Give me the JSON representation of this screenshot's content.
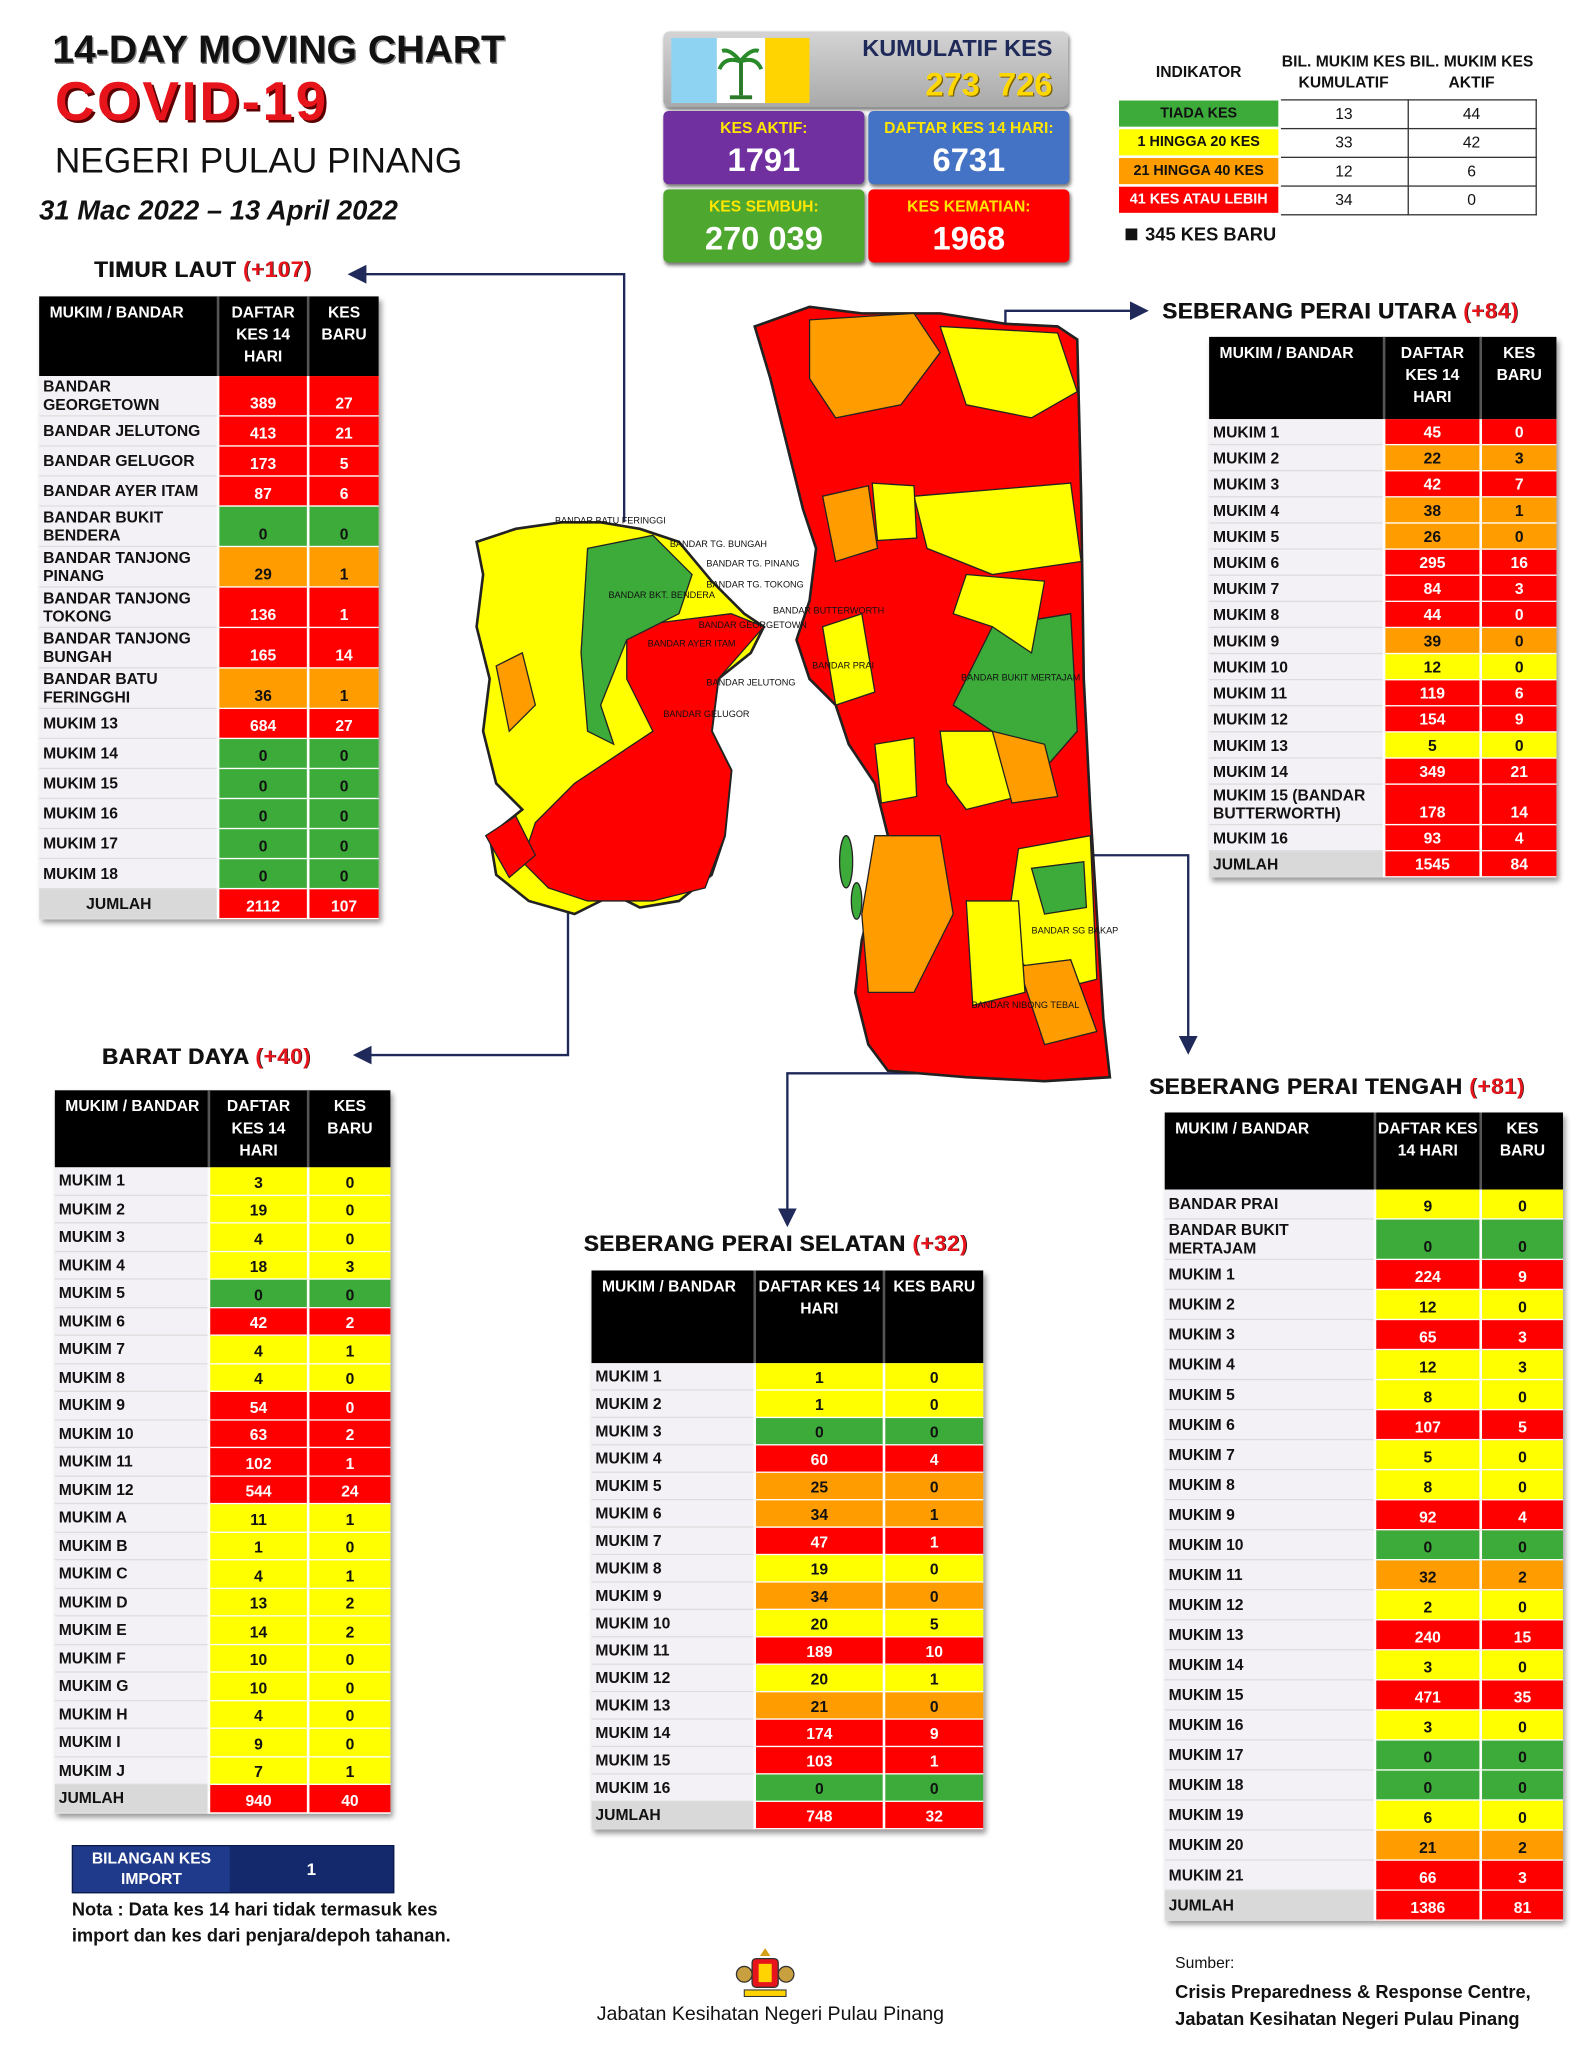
{
  "header": {
    "title": "14-DAY MOVING CHART",
    "subtitle": "COVID-19",
    "state": "NEGERI PULAU PINANG",
    "period": "31 Mac 2022 – 13 April 2022"
  },
  "summary": {
    "cumulative": {
      "label": "KUMULATIF KES",
      "value": 273726,
      "value_label": "273  726"
    },
    "tiles": [
      {
        "label": "KES AKTIF:",
        "value": 1791,
        "color": "#7030a0"
      },
      {
        "label": "DAFTAR KES 14 HARI:",
        "value": 6731,
        "color": "#4472c4"
      },
      {
        "label": "KES SEMBUH:",
        "value": 270039,
        "value_label": "270 039",
        "color": "#4ea72e"
      },
      {
        "label": "KES KEMATIAN:",
        "value": 1968,
        "color": "#ff0000"
      }
    ]
  },
  "indicator": {
    "headers": [
      "INDIKATOR",
      "BIL. MUKIM KES KUMULATIF",
      "BIL. MUKIM KES AKTIF"
    ],
    "rows": [
      {
        "label": "TIADA KES",
        "color": "#3cab3a",
        "cumulative": 13,
        "active": 44
      },
      {
        "label": "1 HINGGA 20 KES",
        "color": "#ffff00",
        "cumulative": 33,
        "active": 42
      },
      {
        "label": "21 HINGGA 40 KES",
        "color": "#ff9c00",
        "cumulative": 12,
        "active": 6
      },
      {
        "label": "41 KES ATAU LEBIH",
        "color": "#ff0000",
        "cumulative": 34,
        "active": 0
      }
    ],
    "new_cases": "345 KES BARU"
  },
  "district_tables": [
    {
      "name": "TIMUR LAUT",
      "change": "(+107)",
      "headers": [
        "MUKIM / BANDAR",
        "DAFTAR KES 14 HARI",
        "KES BARU"
      ],
      "rows": [
        {
          "name": "BANDAR GEORGETOWN",
          "cases_14d": 389,
          "new_cases": 27,
          "color": "#ff0000"
        },
        {
          "name": "BANDAR JELUTONG",
          "cases_14d": 413,
          "new_cases": 21,
          "color": "#ff0000"
        },
        {
          "name": "BANDAR GELUGOR",
          "cases_14d": 173,
          "new_cases": 5,
          "color": "#ff0000"
        },
        {
          "name": "BANDAR AYER ITAM",
          "cases_14d": 87,
          "new_cases": 6,
          "color": "#ff0000"
        },
        {
          "name": "BANDAR BUKIT BENDERA",
          "cases_14d": 0,
          "new_cases": 0,
          "color": "#3cab3a"
        },
        {
          "name": "BANDAR TANJONG PINANG",
          "cases_14d": 29,
          "new_cases": 1,
          "color": "#ff9c00"
        },
        {
          "name": "BANDAR TANJONG TOKONG",
          "cases_14d": 136,
          "new_cases": 1,
          "color": "#ff0000"
        },
        {
          "name": "BANDAR TANJONG BUNGAH",
          "cases_14d": 165,
          "new_cases": 14,
          "color": "#ff0000"
        },
        {
          "name": "BANDAR BATU FERINGGHI",
          "cases_14d": 36,
          "new_cases": 1,
          "color": "#ff9c00"
        },
        {
          "name": "MUKIM 13",
          "cases_14d": 684,
          "new_cases": 27,
          "color": "#ff0000"
        },
        {
          "name": "MUKIM 14",
          "cases_14d": 0,
          "new_cases": 0,
          "color": "#3cab3a"
        },
        {
          "name": "MUKIM 15",
          "cases_14d": 0,
          "new_cases": 0,
          "color": "#3cab3a"
        },
        {
          "name": "MUKIM 16",
          "cases_14d": 0,
          "new_cases": 0,
          "color": "#3cab3a"
        },
        {
          "name": "MUKIM 17",
          "cases_14d": 0,
          "new_cases": 0,
          "color": "#3cab3a"
        },
        {
          "name": "MUKIM 18",
          "cases_14d": 0,
          "new_cases": 0,
          "color": "#3cab3a"
        }
      ],
      "total": {
        "label": "JUMLAH",
        "cases_14d": 2112,
        "new_cases": 107,
        "color": "#ff0000"
      }
    },
    {
      "name": "SEBERANG PERAI UTARA",
      "change": "(+84)",
      "headers": [
        "MUKIM / BANDAR",
        "DAFTAR KES 14 HARI",
        "KES BARU"
      ],
      "rows": [
        {
          "name": "MUKIM 1",
          "cases_14d": 45,
          "new_cases": 0,
          "color": "#ff0000"
        },
        {
          "name": "MUKIM 2",
          "cases_14d": 22,
          "new_cases": 3,
          "color": "#ff9c00"
        },
        {
          "name": "MUKIM 3",
          "cases_14d": 42,
          "new_cases": 7,
          "color": "#ff0000"
        },
        {
          "name": "MUKIM 4",
          "cases_14d": 38,
          "new_cases": 1,
          "color": "#ff9c00"
        },
        {
          "name": "MUKIM 5",
          "cases_14d": 26,
          "new_cases": 0,
          "color": "#ff9c00"
        },
        {
          "name": "MUKIM 6",
          "cases_14d": 295,
          "new_cases": 16,
          "color": "#ff0000"
        },
        {
          "name": "MUKIM 7",
          "cases_14d": 84,
          "new_cases": 3,
          "color": "#ff0000"
        },
        {
          "name": "MUKIM 8",
          "cases_14d": 44,
          "new_cases": 0,
          "color": "#ff0000"
        },
        {
          "name": "MUKIM 9",
          "cases_14d": 39,
          "new_cases": 0,
          "color": "#ff9c00"
        },
        {
          "name": "MUKIM 10",
          "cases_14d": 12,
          "new_cases": 0,
          "color": "#ffff00"
        },
        {
          "name": "MUKIM 11",
          "cases_14d": 119,
          "new_cases": 6,
          "color": "#ff0000"
        },
        {
          "name": "MUKIM 12",
          "cases_14d": 154,
          "new_cases": 9,
          "color": "#ff0000"
        },
        {
          "name": "MUKIM 13",
          "cases_14d": 5,
          "new_cases": 0,
          "color": "#ffff00"
        },
        {
          "name": "MUKIM 14",
          "cases_14d": 349,
          "new_cases": 21,
          "color": "#ff0000"
        },
        {
          "name": "MUKIM 15 (BANDAR BUTTERWORTH)",
          "cases_14d": 178,
          "new_cases": 14,
          "color": "#ff0000"
        },
        {
          "name": "MUKIM 16",
          "cases_14d": 93,
          "new_cases": 4,
          "color": "#ff0000"
        }
      ],
      "total": {
        "label": "JUMLAH",
        "cases_14d": 1545,
        "new_cases": 84,
        "color": "#ff0000"
      }
    },
    {
      "name": "BARAT DAYA",
      "change": "(+40)",
      "headers": [
        "MUKIM / BANDAR",
        "DAFTAR KES 14 HARI",
        "KES BARU"
      ],
      "rows": [
        {
          "name": "MUKIM 1",
          "cases_14d": 3,
          "new_cases": 0,
          "color": "#ffff00"
        },
        {
          "name": "MUKIM 2",
          "cases_14d": 19,
          "new_cases": 0,
          "color": "#ffff00"
        },
        {
          "name": "MUKIM 3",
          "cases_14d": 4,
          "new_cases": 0,
          "color": "#ffff00"
        },
        {
          "name": "MUKIM 4",
          "cases_14d": 18,
          "new_cases": 3,
          "color": "#ffff00"
        },
        {
          "name": "MUKIM 5",
          "cases_14d": 0,
          "new_cases": 0,
          "color": "#3cab3a"
        },
        {
          "name": "MUKIM 6",
          "cases_14d": 42,
          "new_cases": 2,
          "color": "#ff0000"
        },
        {
          "name": "MUKIM 7",
          "cases_14d": 4,
          "new_cases": 1,
          "color": "#ffff00"
        },
        {
          "name": "MUKIM 8",
          "cases_14d": 4,
          "new_cases": 0,
          "color": "#ffff00"
        },
        {
          "name": "MUKIM 9",
          "cases_14d": 54,
          "new_cases": 0,
          "color": "#ff0000"
        },
        {
          "name": "MUKIM 10",
          "cases_14d": 63,
          "new_cases": 2,
          "color": "#ff0000"
        },
        {
          "name": "MUKIM 11",
          "cases_14d": 102,
          "new_cases": 1,
          "color": "#ff0000"
        },
        {
          "name": "MUKIM 12",
          "cases_14d": 544,
          "new_cases": 24,
          "color": "#ff0000"
        },
        {
          "name": "MUKIM A",
          "cases_14d": 11,
          "new_cases": 1,
          "color": "#ffff00"
        },
        {
          "name": "MUKIM B",
          "cases_14d": 1,
          "new_cases": 0,
          "color": "#ffff00"
        },
        {
          "name": "MUKIM C",
          "cases_14d": 4,
          "new_cases": 1,
          "color": "#ffff00"
        },
        {
          "name": "MUKIM D",
          "cases_14d": 13,
          "new_cases": 2,
          "color": "#ffff00"
        },
        {
          "name": "MUKIM E",
          "cases_14d": 14,
          "new_cases": 2,
          "color": "#ffff00"
        },
        {
          "name": "MUKIM F",
          "cases_14d": 10,
          "new_cases": 0,
          "color": "#ffff00"
        },
        {
          "name": "MUKIM G",
          "cases_14d": 10,
          "new_cases": 0,
          "color": "#ffff00"
        },
        {
          "name": "MUKIM H",
          "cases_14d": 4,
          "new_cases": 0,
          "color": "#ffff00"
        },
        {
          "name": "MUKIM I",
          "cases_14d": 9,
          "new_cases": 0,
          "color": "#ffff00"
        },
        {
          "name": "MUKIM J",
          "cases_14d": 7,
          "new_cases": 1,
          "color": "#ffff00"
        }
      ],
      "total": {
        "label": "JUMLAH",
        "cases_14d": 940,
        "new_cases": 40,
        "color": "#ff0000"
      }
    },
    {
      "name": "SEBERANG PERAI SELATAN",
      "change": "(+32)",
      "headers": [
        "MUKIM / BANDAR",
        "DAFTAR KES 14 HARI",
        "KES BARU"
      ],
      "rows": [
        {
          "name": "MUKIM 1",
          "cases_14d": 1,
          "new_cases": 0,
          "color": "#ffff00"
        },
        {
          "name": "MUKIM 2",
          "cases_14d": 1,
          "new_cases": 0,
          "color": "#ffff00"
        },
        {
          "name": "MUKIM 3",
          "cases_14d": 0,
          "new_cases": 0,
          "color": "#3cab3a"
        },
        {
          "name": "MUKIM 4",
          "cases_14d": 60,
          "new_cases": 4,
          "color": "#ff0000"
        },
        {
          "name": "MUKIM 5",
          "cases_14d": 25,
          "new_cases": 0,
          "color": "#ff9c00"
        },
        {
          "name": "MUKIM 6",
          "cases_14d": 34,
          "new_cases": 1,
          "color": "#ff9c00"
        },
        {
          "name": "MUKIM 7",
          "cases_14d": 47,
          "new_cases": 1,
          "color": "#ff0000"
        },
        {
          "name": "MUKIM 8",
          "cases_14d": 19,
          "new_cases": 0,
          "color": "#ffff00"
        },
        {
          "name": "MUKIM 9",
          "cases_14d": 34,
          "new_cases": 0,
          "color": "#ff9c00"
        },
        {
          "name": "MUKIM 10",
          "cases_14d": 20,
          "new_cases": 5,
          "color": "#ffff00"
        },
        {
          "name": "MUKIM 11",
          "cases_14d": 189,
          "new_cases": 10,
          "color": "#ff0000"
        },
        {
          "name": "MUKIM 12",
          "cases_14d": 20,
          "new_cases": 1,
          "color": "#ffff00"
        },
        {
          "name": "MUKIM 13",
          "cases_14d": 21,
          "new_cases": 0,
          "color": "#ff9c00"
        },
        {
          "name": "MUKIM 14",
          "cases_14d": 174,
          "new_cases": 9,
          "color": "#ff0000"
        },
        {
          "name": "MUKIM 15",
          "cases_14d": 103,
          "new_cases": 1,
          "color": "#ff0000"
        },
        {
          "name": "MUKIM 16",
          "cases_14d": 0,
          "new_cases": 0,
          "color": "#3cab3a"
        }
      ],
      "total": {
        "label": "JUMLAH",
        "cases_14d": 748,
        "new_cases": 32,
        "color": "#ff0000"
      }
    },
    {
      "name": "SEBERANG PERAI TENGAH",
      "change": "(+81)",
      "headers": [
        "MUKIM / BANDAR",
        "DAFTAR KES 14 HARI",
        "KES BARU"
      ],
      "rows": [
        {
          "name": "BANDAR PRAI",
          "cases_14d": 9,
          "new_cases": 0,
          "color": "#ffff00"
        },
        {
          "name": "BANDAR BUKIT MERTAJAM",
          "cases_14d": 0,
          "new_cases": 0,
          "color": "#3cab3a"
        },
        {
          "name": "MUKIM 1",
          "cases_14d": 224,
          "new_cases": 9,
          "color": "#ff0000"
        },
        {
          "name": "MUKIM 2",
          "cases_14d": 12,
          "new_cases": 0,
          "color": "#ffff00"
        },
        {
          "name": "MUKIM 3",
          "cases_14d": 65,
          "new_cases": 3,
          "color": "#ff0000"
        },
        {
          "name": "MUKIM 4",
          "cases_14d": 12,
          "new_cases": 3,
          "color": "#ffff00"
        },
        {
          "name": "MUKIM 5",
          "cases_14d": 8,
          "new_cases": 0,
          "color": "#ffff00"
        },
        {
          "name": "MUKIM 6",
          "cases_14d": 107,
          "new_cases": 5,
          "color": "#ff0000"
        },
        {
          "name": "MUKIM 7",
          "cases_14d": 5,
          "new_cases": 0,
          "color": "#ffff00"
        },
        {
          "name": "MUKIM 8",
          "cases_14d": 8,
          "new_cases": 0,
          "color": "#ffff00"
        },
        {
          "name": "MUKIM 9",
          "cases_14d": 92,
          "new_cases": 4,
          "color": "#ff0000"
        },
        {
          "name": "MUKIM 10",
          "cases_14d": 0,
          "new_cases": 0,
          "color": "#3cab3a"
        },
        {
          "name": "MUKIM 11",
          "cases_14d": 32,
          "new_cases": 2,
          "color": "#ff9c00"
        },
        {
          "name": "MUKIM 12",
          "cases_14d": 2,
          "new_cases": 0,
          "color": "#ffff00"
        },
        {
          "name": "MUKIM 13",
          "cases_14d": 240,
          "new_cases": 15,
          "color": "#ff0000"
        },
        {
          "name": "MUKIM 14",
          "cases_14d": 3,
          "new_cases": 0,
          "color": "#ffff00"
        },
        {
          "name": "MUKIM 15",
          "cases_14d": 471,
          "new_cases": 35,
          "color": "#ff0000"
        },
        {
          "name": "MUKIM 16",
          "cases_14d": 3,
          "new_cases": 0,
          "color": "#ffff00"
        },
        {
          "name": "MUKIM 17",
          "cases_14d": 0,
          "new_cases": 0,
          "color": "#3cab3a"
        },
        {
          "name": "MUKIM 18",
          "cases_14d": 0,
          "new_cases": 0,
          "color": "#3cab3a"
        },
        {
          "name": "MUKIM 19",
          "cases_14d": 6,
          "new_cases": 0,
          "color": "#ffff00"
        },
        {
          "name": "MUKIM 20",
          "cases_14d": 21,
          "new_cases": 2,
          "color": "#ff9c00"
        },
        {
          "name": "MUKIM 21",
          "cases_14d": 66,
          "new_cases": 3,
          "color": "#ff0000"
        }
      ],
      "total": {
        "label": "JUMLAH",
        "cases_14d": 1386,
        "new_cases": 81,
        "color": "#ff0000"
      }
    }
  ],
  "import_cases": {
    "label": "BILANGAN KES IMPORT",
    "value": 1
  },
  "note": "Nota : Data kes 14 hari tidak termasuk kes import dan kes dari penjara/depoh tahanan.",
  "footer": {
    "department": "Jabatan Kesihatan Negeri Pulau Pinang",
    "source_label": "Sumber:",
    "source_lines": [
      "Crisis Preparedness & Response Centre,",
      "Jabatan Kesihatan Negeri Pulau Pinang"
    ]
  },
  "map_labels": [
    "BANDAR BATU FERINGGI",
    "BANDAR TG. BUNGAH",
    "BANDAR TG. PINANG",
    "BANDAR TG. TOKONG",
    "BANDAR BKT. BENDERA",
    "BANDAR GEORGETOWN",
    "BANDAR AYER ITAM",
    "BANDAR JELUTONG",
    "BANDAR GELUGOR",
    "BANDAR BUTTERWORTH",
    "BANDAR PRAI",
    "BANDAR BUKIT MERTAJAM",
    "BANDAR SG BAKAP",
    "BANDAR NIBONG TEBAL"
  ]
}
